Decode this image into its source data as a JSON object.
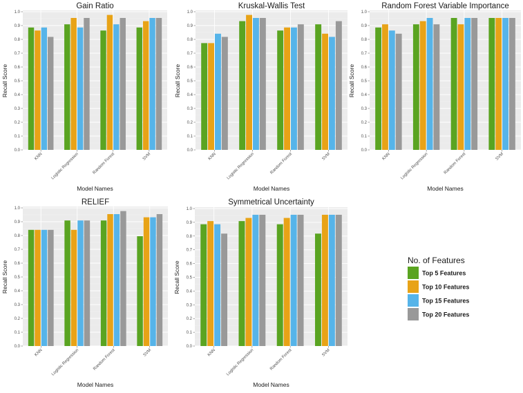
{
  "chart_data": [
    {
      "type": "bar",
      "title": "Gain Ratio",
      "xlabel": "Model Names",
      "ylabel": "Recall Score",
      "ylim": [
        0,
        1.0
      ],
      "yticks": [
        "0.0",
        "0.1",
        "0.2",
        "0.3",
        "0.4",
        "0.5",
        "0.6",
        "0.7",
        "0.8",
        "0.9",
        "1.0"
      ],
      "categories": [
        "KNN",
        "Logistic Regression",
        "Random Forest",
        "SVM"
      ],
      "series": [
        {
          "name": "Top 5 Features",
          "values": [
            0.886,
            0.909,
            0.864,
            0.886
          ]
        },
        {
          "name": "Top 10 Features",
          "values": [
            0.864,
            0.955,
            0.977,
            0.932
          ]
        },
        {
          "name": "Top 15 Features",
          "values": [
            0.886,
            0.886,
            0.909,
            0.955
          ]
        },
        {
          "name": "Top 20 Features",
          "values": [
            0.818,
            0.955,
            0.955,
            0.955
          ]
        }
      ],
      "grid": true
    },
    {
      "type": "bar",
      "title": "Kruskal-Wallis Test",
      "xlabel": "Model Names",
      "ylabel": "Recall Score",
      "ylim": [
        0,
        1.0
      ],
      "yticks": [
        "0.0",
        "0.1",
        "0.2",
        "0.3",
        "0.4",
        "0.5",
        "0.6",
        "0.7",
        "0.8",
        "0.9",
        "1.0"
      ],
      "categories": [
        "KNN",
        "Logistic Regression",
        "Random Forest",
        "SVM"
      ],
      "series": [
        {
          "name": "Top 5 Features",
          "values": [
            0.773,
            0.932,
            0.864,
            0.909
          ]
        },
        {
          "name": "Top 10 Features",
          "values": [
            0.773,
            0.977,
            0.886,
            0.841
          ]
        },
        {
          "name": "Top 15 Features",
          "values": [
            0.841,
            0.955,
            0.886,
            0.818
          ]
        },
        {
          "name": "Top 20 Features",
          "values": [
            0.818,
            0.955,
            0.909,
            0.932
          ]
        }
      ],
      "grid": true
    },
    {
      "type": "bar",
      "title": "Random Forest Variable Importance",
      "xlabel": "Model Names",
      "ylabel": "Recall Score",
      "ylim": [
        0,
        1.0
      ],
      "yticks": [
        "0.0",
        "0.1",
        "0.2",
        "0.3",
        "0.4",
        "0.5",
        "0.6",
        "0.7",
        "0.8",
        "0.9",
        "1.0"
      ],
      "categories": [
        "KNN",
        "Logistic Regression",
        "Random Forest",
        "SVM"
      ],
      "series": [
        {
          "name": "Top 5 Features",
          "values": [
            0.886,
            0.909,
            0.955,
            0.955
          ]
        },
        {
          "name": "Top 10 Features",
          "values": [
            0.909,
            0.932,
            0.909,
            0.955
          ]
        },
        {
          "name": "Top 15 Features",
          "values": [
            0.864,
            0.955,
            0.955,
            0.955
          ]
        },
        {
          "name": "Top 20 Features",
          "values": [
            0.841,
            0.909,
            0.955,
            0.955
          ]
        }
      ],
      "grid": true
    },
    {
      "type": "bar",
      "title": "RELIEF",
      "xlabel": "Model Names",
      "ylabel": "Recall Score",
      "ylim": [
        0,
        1.0
      ],
      "yticks": [
        "0.0",
        "0.1",
        "0.2",
        "0.3",
        "0.4",
        "0.5",
        "0.6",
        "0.7",
        "0.8",
        "0.9",
        "1.0"
      ],
      "categories": [
        "KNN",
        "Logistic Regression",
        "Random Forest",
        "SVM"
      ],
      "series": [
        {
          "name": "Top 5 Features",
          "values": [
            0.841,
            0.909,
            0.909,
            0.795
          ]
        },
        {
          "name": "Top 10 Features",
          "values": [
            0.841,
            0.841,
            0.955,
            0.932
          ]
        },
        {
          "name": "Top 15 Features",
          "values": [
            0.841,
            0.909,
            0.955,
            0.932
          ]
        },
        {
          "name": "Top 20 Features",
          "values": [
            0.841,
            0.909,
            0.977,
            0.955
          ]
        }
      ],
      "grid": true
    },
    {
      "type": "bar",
      "title": "Symmetrical Uncertainty",
      "xlabel": "Model Names",
      "ylabel": "Recall Score",
      "ylim": [
        0,
        1.0
      ],
      "yticks": [
        "0.0",
        "0.1",
        "0.2",
        "0.3",
        "0.4",
        "0.5",
        "0.6",
        "0.7",
        "0.8",
        "0.9",
        "1.0"
      ],
      "categories": [
        "KNN",
        "Logistic Regression",
        "Random Forest",
        "SVM"
      ],
      "series": [
        {
          "name": "Top 5 Features",
          "values": [
            0.886,
            0.909,
            0.886,
            0.818
          ]
        },
        {
          "name": "Top 10 Features",
          "values": [
            0.909,
            0.932,
            0.932,
            0.955
          ]
        },
        {
          "name": "Top 15 Features",
          "values": [
            0.886,
            0.955,
            0.955,
            0.955
          ]
        },
        {
          "name": "Top 20 Features",
          "values": [
            0.818,
            0.955,
            0.955,
            0.955
          ]
        }
      ],
      "grid": true
    }
  ],
  "legend": {
    "title": "No. of Features",
    "placement": "right",
    "items": [
      {
        "label": "Top 5 Features",
        "color": "#5aa421"
      },
      {
        "label": "Top 10 Features",
        "color": "#e8a317"
      },
      {
        "label": "Top 15 Features",
        "color": "#56b4e9"
      },
      {
        "label": "Top 20 Features",
        "color": "#999999"
      }
    ]
  },
  "colors": {
    "panel_bg": "#ebebeb",
    "grid_major": "#ffffff",
    "grid_minor": "#f2f2f2"
  }
}
